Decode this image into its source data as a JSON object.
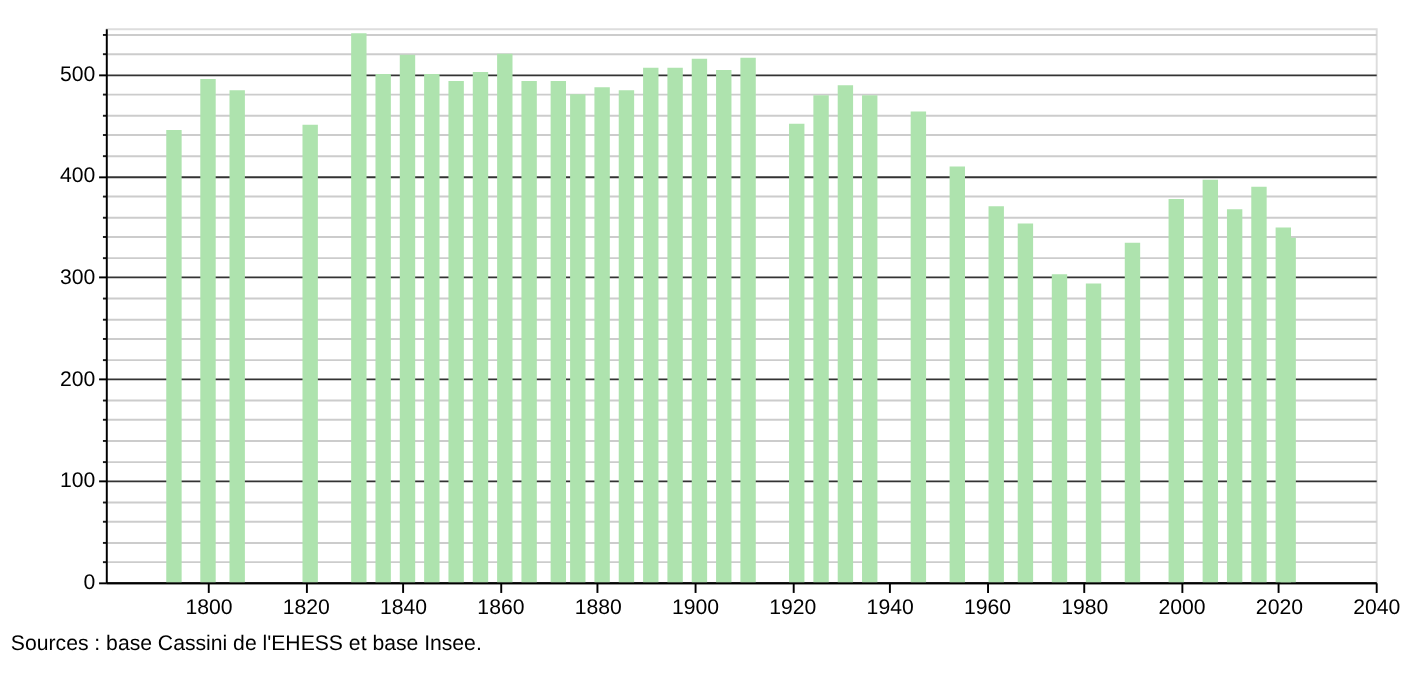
{
  "chart_data": {
    "type": "bar",
    "x": [
      1793,
      1800,
      1806,
      1821,
      1831,
      1836,
      1841,
      1846,
      1851,
      1856,
      1861,
      1866,
      1872,
      1876,
      1881,
      1886,
      1891,
      1896,
      1901,
      1906,
      1911,
      1921,
      1926,
      1931,
      1936,
      1946,
      1954,
      1962,
      1968,
      1975,
      1982,
      1990,
      1999,
      2006,
      2011,
      2016,
      2021,
      2022
    ],
    "values": [
      445,
      495,
      484,
      450,
      540,
      500,
      519,
      500,
      493,
      502,
      520,
      493,
      493,
      480,
      487,
      484,
      506,
      506,
      515,
      504,
      516,
      451,
      479,
      489,
      479,
      463,
      409,
      370,
      353,
      303,
      294,
      334,
      377,
      396,
      367,
      389,
      349,
      339
    ],
    "color": "#aee3ae",
    "xlim": [
      1779,
      2040
    ],
    "xticks": [
      1800,
      1820,
      1840,
      1860,
      1880,
      1900,
      1920,
      1940,
      1960,
      1980,
      2000,
      2020,
      2040
    ],
    "ylim": [
      0,
      545
    ],
    "yticks": [
      0,
      {
        "value": 20,
        "label": null
      },
      {
        "value": 40,
        "label": null
      },
      {
        "value": 60,
        "label": null
      },
      {
        "value": 80,
        "label": null
      },
      100,
      {
        "value": 120,
        "label": null
      },
      {
        "value": 140,
        "label": null
      },
      {
        "value": 160,
        "label": null
      },
      {
        "value": 180,
        "label": null
      },
      200,
      {
        "value": 220,
        "label": null
      },
      {
        "value": 240,
        "label": null
      },
      {
        "value": 260,
        "label": null
      },
      {
        "value": 280,
        "label": null
      },
      300,
      {
        "value": 320,
        "label": null
      },
      {
        "value": 340,
        "label": null
      },
      {
        "value": 360,
        "label": null
      },
      {
        "value": 380,
        "label": null
      },
      400,
      {
        "value": 420,
        "label": null
      },
      {
        "value": 440,
        "label": null
      },
      {
        "value": 460,
        "label": null
      },
      {
        "value": 480,
        "label": null
      },
      500,
      {
        "value": 520,
        "label": null
      },
      {
        "value": 540,
        "label": null
      }
    ],
    "grid": "y",
    "annotations": [
      "Sources : base Cassini de l'EHESS et base Insee."
    ]
  }
}
